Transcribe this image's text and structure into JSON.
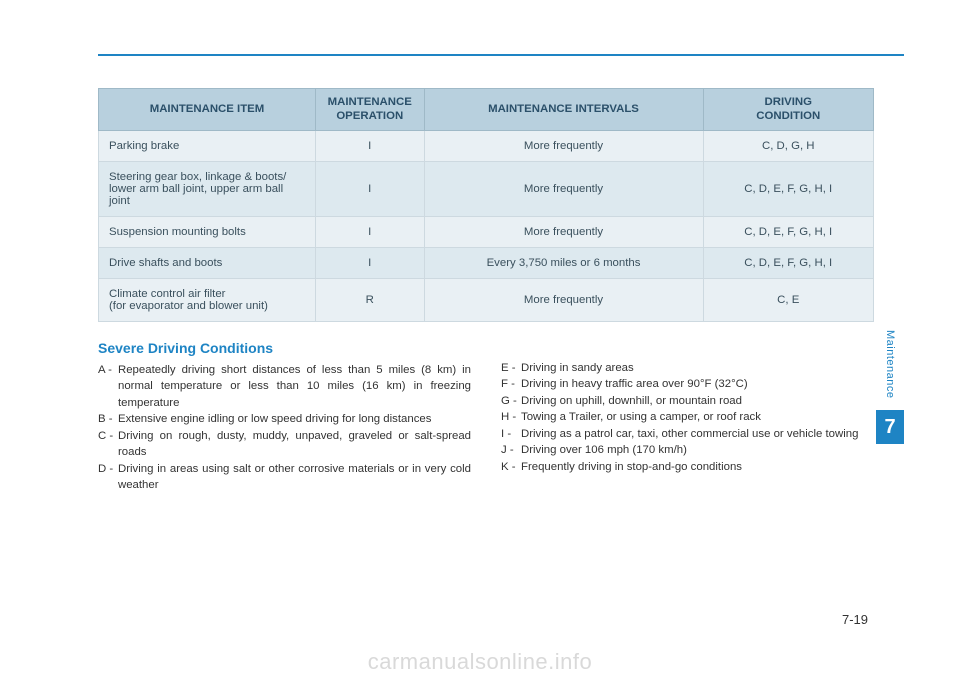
{
  "table": {
    "headers": {
      "item": "MAINTENANCE ITEM",
      "operation": "MAINTENANCE\nOPERATION",
      "intervals": "MAINTENANCE INTERVALS",
      "condition": "DRIVING\nCONDITION"
    },
    "rows": [
      {
        "item": "Parking brake",
        "op": "I",
        "interval": "More frequently",
        "cond": "C, D, G, H"
      },
      {
        "item": "Steering gear box, linkage & boots/ lower arm ball joint, upper arm ball joint",
        "op": "I",
        "interval": "More frequently",
        "cond": "C, D, E, F, G, H, I"
      },
      {
        "item": "Suspension mounting bolts",
        "op": "I",
        "interval": "More frequently",
        "cond": "C, D, E, F, G, H, I"
      },
      {
        "item": "Drive shafts and boots",
        "op": "I",
        "interval": "Every 3,750 miles or 6 months",
        "cond": "C, D, E, F, G, H, I"
      },
      {
        "item": "Climate control air filter\n(for evaporator and blower unit)",
        "op": "R",
        "interval": "More frequently",
        "cond": "C, E"
      }
    ],
    "colors": {
      "header_bg": "#b8d0de",
      "header_text": "#2b506a",
      "row_bg_a": "#e9f0f4",
      "row_bg_b": "#dde9ef",
      "border": "#cdd9e0",
      "cell_text": "#3a505d"
    }
  },
  "conditions": {
    "title": "Severe Driving Conditions",
    "left": [
      {
        "k": "A -",
        "t": "Repeatedly driving short distances of less than 5 miles (8 km) in normal temperature or less than 10 miles (16 km) in freezing temperature"
      },
      {
        "k": "B -",
        "t": "Extensive engine idling or low speed driving for long distances"
      },
      {
        "k": "C -",
        "t": "Driving on rough, dusty, muddy, unpaved, graveled or salt-spread roads"
      },
      {
        "k": "D -",
        "t": "Driving in areas using salt or other corrosive materials or in very cold weather"
      }
    ],
    "right": [
      {
        "k": "E -",
        "t": "Driving in sandy areas"
      },
      {
        "k": "F -",
        "t": "Driving in heavy traffic area over 90°F (32°C)"
      },
      {
        "k": "G -",
        "t": "Driving on uphill, downhill, or mountain road"
      },
      {
        "k": "H -",
        "t": "Towing a Trailer, or using a camper, or roof rack"
      },
      {
        "k": "I  -",
        "t": "Driving as a patrol car, taxi, other commercial use or vehicle towing"
      },
      {
        "k": "J -",
        "t": "Driving over 106 mph (170 km/h)"
      },
      {
        "k": "K -",
        "t": "Frequently driving in stop-and-go conditions"
      }
    ]
  },
  "side": {
    "label": "Maintenance",
    "num": "7"
  },
  "page_number": "7-19",
  "watermark": "carmanualsonline.info",
  "accent_color": "#1e84c4"
}
